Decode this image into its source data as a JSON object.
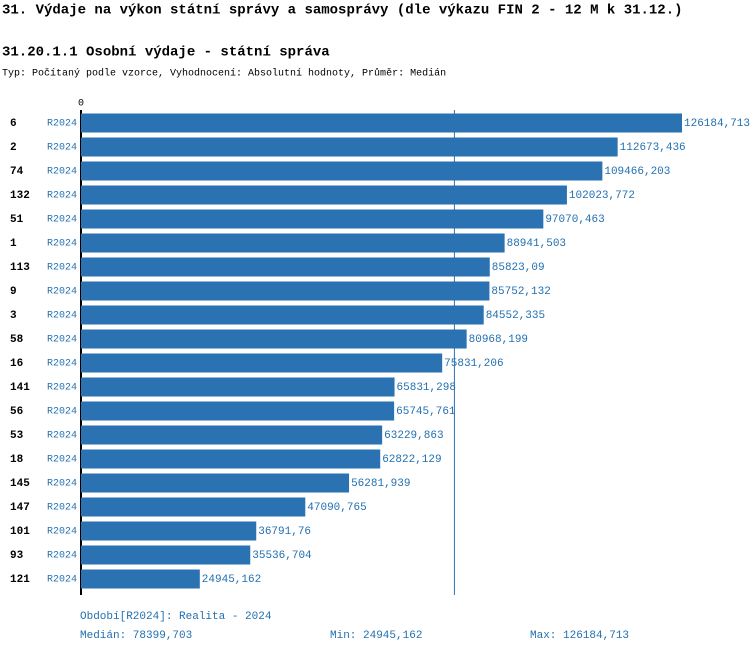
{
  "chart_data": {
    "type": "bar",
    "orientation": "horizontal",
    "title": "31. Výdaje na výkon státní správy a samosprávy (dle výkazu FIN 2 - 12 M k 31.12.)",
    "subtitle": "31.20.1.1 Osobní výdaje - státní správa",
    "description": "Typ: Počítaný podle vzorce, Vyhodnocení: Absolutní hodnoty, Průměr: Medián",
    "period": "R2024",
    "categories": [
      "6",
      "2",
      "74",
      "132",
      "51",
      "1",
      "113",
      "9",
      "3",
      "58",
      "16",
      "141",
      "56",
      "53",
      "18",
      "145",
      "147",
      "101",
      "93",
      "121"
    ],
    "values": [
      126184.713,
      112673.436,
      109466.203,
      102023.772,
      97070.463,
      88941.503,
      85823.09,
      85752.132,
      84552.335,
      80968.199,
      75831.206,
      65831.298,
      65745.761,
      63229.863,
      62822.129,
      56281.939,
      47090.765,
      36791.76,
      35536.704,
      24945.162
    ],
    "value_labels": [
      "126184,713",
      "112673,436",
      "109466,203",
      "102023,772",
      "97070,463",
      "88941,503",
      "85823,09",
      "85752,132",
      "84552,335",
      "80968,199",
      "75831,206",
      "65831,298",
      "65745,761",
      "63229,863",
      "62822,129",
      "56281,939",
      "47090,765",
      "36791,76",
      "35536,704",
      "24945,162"
    ],
    "color": "#2a72b2",
    "xlim": [
      0,
      126184.713
    ],
    "xticks": [
      0
    ],
    "median": {
      "value": 78399.703,
      "label": "Medián: 78399,703"
    },
    "legend": "Období[R2024]: Realita - 2024",
    "min_label": "Min: 24945,162",
    "max_label": "Max: 126184,713"
  }
}
